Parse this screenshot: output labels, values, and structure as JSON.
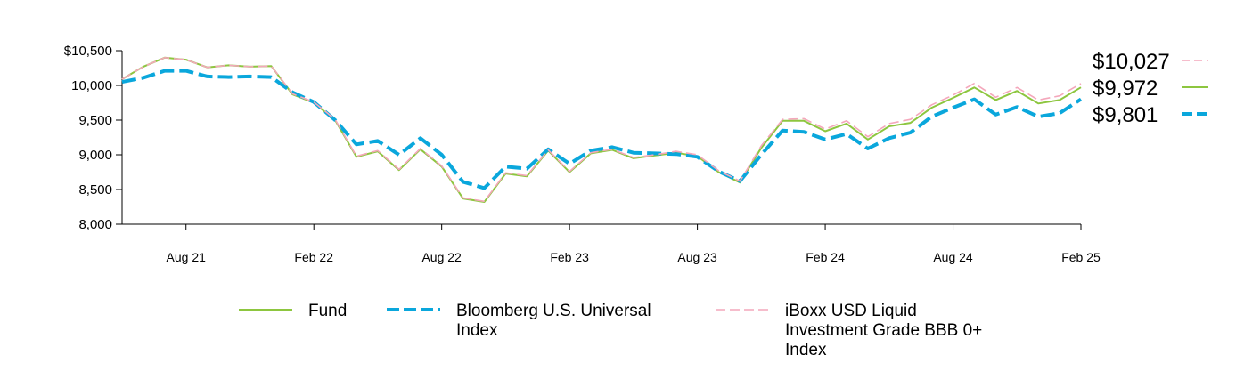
{
  "chart_data": {
    "type": "line",
    "title": "",
    "xlabel": "",
    "ylabel": "",
    "ylim": [
      8000,
      10500
    ],
    "y_ticks": [
      8000,
      8500,
      9000,
      9500,
      10000,
      10500
    ],
    "y_tick_labels": [
      "8,000",
      "8,500",
      "9,000",
      "9,500",
      "10,000",
      "$10,500"
    ],
    "x_ticks": [
      {
        "index": 3,
        "label": "Aug 21"
      },
      {
        "index": 9,
        "label": "Feb 22"
      },
      {
        "index": 15,
        "label": "Aug 22"
      },
      {
        "index": 21,
        "label": "Feb 23"
      },
      {
        "index": 27,
        "label": "Aug 23"
      },
      {
        "index": 33,
        "label": "Feb 24"
      },
      {
        "index": 39,
        "label": "Aug 24"
      },
      {
        "index": 45,
        "label": "Feb 25"
      }
    ],
    "grid": false,
    "legend_position": "bottom",
    "series": [
      {
        "name": "Fund",
        "color": "#8dc63f",
        "dash": "solid",
        "end_label": "$9,972",
        "values": [
          10090,
          10270,
          10400,
          10370,
          10260,
          10290,
          10270,
          10280,
          9870,
          9750,
          9500,
          8970,
          9050,
          8780,
          9080,
          8830,
          8370,
          8320,
          8730,
          8690,
          9060,
          8750,
          9020,
          9070,
          8950,
          8990,
          9030,
          8980,
          8750,
          8600,
          9100,
          9490,
          9490,
          9340,
          9450,
          9220,
          9410,
          9460,
          9680,
          9820,
          9970,
          9790,
          9920,
          9740,
          9790,
          9972
        ]
      },
      {
        "name": "Bloomberg U.S. Universal Index",
        "color": "#0aa7dc",
        "dash": "long",
        "end_label": "$9,801",
        "values": [
          10050,
          10110,
          10210,
          10210,
          10130,
          10120,
          10130,
          10120,
          9900,
          9760,
          9500,
          9150,
          9200,
          9000,
          9240,
          9000,
          8610,
          8520,
          8830,
          8800,
          9080,
          8870,
          9060,
          9110,
          9030,
          9020,
          9010,
          8970,
          8760,
          8620,
          9000,
          9350,
          9330,
          9220,
          9300,
          9090,
          9240,
          9320,
          9550,
          9680,
          9800,
          9580,
          9690,
          9550,
          9600,
          9801
        ]
      },
      {
        "name": "iBoxx USD Liquid Investment Grade BBB 0+ Index",
        "color": "#f4a7bb",
        "dash": "short",
        "end_label": "$10,027",
        "values": [
          10090,
          10270,
          10400,
          10370,
          10260,
          10290,
          10270,
          10280,
          9880,
          9760,
          9510,
          8980,
          9060,
          8790,
          9090,
          8840,
          8380,
          8330,
          8740,
          8700,
          9070,
          8760,
          9030,
          9080,
          8960,
          9000,
          9050,
          9000,
          8770,
          8620,
          9130,
          9510,
          9520,
          9370,
          9490,
          9260,
          9450,
          9510,
          9720,
          9860,
          10030,
          9830,
          9970,
          9790,
          9850,
          10027
        ]
      }
    ],
    "legend": [
      {
        "series": 0,
        "lines": [
          "Fund"
        ]
      },
      {
        "series": 1,
        "lines": [
          "Bloomberg U.S. Universal",
          "Index"
        ]
      },
      {
        "series": 2,
        "lines": [
          "iBoxx USD Liquid",
          "Investment Grade BBB 0+",
          "Index"
        ]
      }
    ]
  }
}
